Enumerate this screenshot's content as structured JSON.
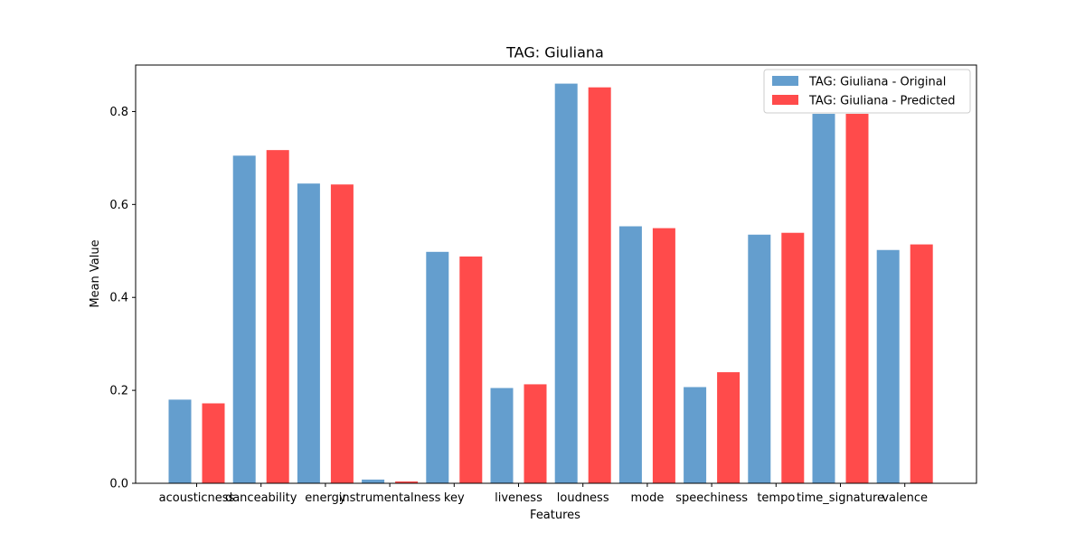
{
  "chart_data": {
    "type": "bar",
    "title": "TAG: Giuliana",
    "xlabel": "Features",
    "ylabel": "Mean Value",
    "ylim": [
      0,
      0.9
    ],
    "yticks": [
      0.0,
      0.2,
      0.4,
      0.6,
      0.8
    ],
    "ytick_labels": [
      "0.0",
      "0.2",
      "0.4",
      "0.6",
      "0.8"
    ],
    "categories": [
      "acousticness",
      "danceability",
      "energy",
      "instrumentalness",
      "key",
      "liveness",
      "loudness",
      "mode",
      "speechiness",
      "tempo",
      "time_signature",
      "valence"
    ],
    "series": [
      {
        "name": "TAG: Giuliana - Original",
        "color": "#4f91c7",
        "values": [
          0.18,
          0.705,
          0.645,
          0.008,
          0.498,
          0.205,
          0.86,
          0.553,
          0.207,
          0.535,
          0.795,
          0.502
        ]
      },
      {
        "name": "TAG: Giuliana - Predicted",
        "color": "#ff4b4b",
        "values": [
          0.172,
          0.717,
          0.643,
          0.004,
          0.488,
          0.213,
          0.852,
          0.549,
          0.239,
          0.539,
          0.795,
          0.514
        ]
      }
    ],
    "legend_placement": "top-right",
    "grid": false
  }
}
